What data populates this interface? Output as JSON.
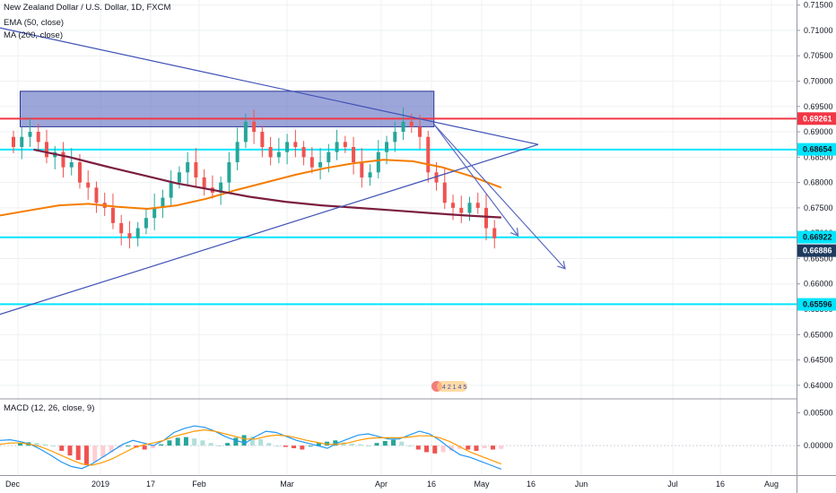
{
  "legend": {
    "symbol": "New Zealand Dollar / U.S. Dollar, 1D, FXCM",
    "ema": "EMA (50, close)",
    "ma": "MA (200, close)",
    "macd": "MACD (12, 26, close, 9)"
  },
  "badge_text": "4 2 1 4 5",
  "colors": {
    "bull": "#26a69a",
    "bear": "#ef5350",
    "ema": "#f57c00",
    "ma": "#7b1e3f",
    "trend": "#3f51b5",
    "cyan": "#00e5ff",
    "red_level": "#f23645",
    "zone_fill": "#5c6bc0",
    "macd_line": "#2196f3",
    "signal_line": "#ff9800"
  },
  "chart_data": [
    {
      "type": "candlestick",
      "title": "New Zealand Dollar / U.S. Dollar, 1D, FXCM",
      "y_axis_ticks": [
        "0.71500",
        "0.71000",
        "0.70500",
        "0.70000",
        "0.69500",
        "0.69000",
        "0.68500",
        "0.68000",
        "0.67500",
        "0.67000",
        "0.66500",
        "0.66000",
        "0.65500",
        "0.65000",
        "0.64500",
        "0.64000"
      ],
      "y_range": [
        0.6375,
        0.716
      ],
      "x_axis_ticks": [
        "Dec",
        "2019",
        "17",
        "Feb",
        "Mar",
        "Apr",
        "16",
        "May",
        "16",
        "Jun",
        "Jul",
        "16",
        "Aug"
      ],
      "price_labels": [
        {
          "value": "0.69261",
          "style": "red"
        },
        {
          "value": "0.68654",
          "style": "cyan"
        },
        {
          "value": "0.66922",
          "style": "cyan"
        },
        {
          "value": "0.66886",
          "style": "dark"
        },
        {
          "value": "0.65596",
          "style": "cyan"
        }
      ],
      "horizontal_levels": [
        {
          "price": 0.6926,
          "color": "red"
        },
        {
          "price": 0.6865,
          "color": "cyan"
        },
        {
          "price": 0.6692,
          "color": "cyan"
        },
        {
          "price": 0.656,
          "color": "cyan"
        }
      ],
      "zone": {
        "from_price": 0.691,
        "to_price": 0.698,
        "from": "Nov 26",
        "to": "Mar 30"
      },
      "ohlc_sample_closes": [
        0.687,
        0.689,
        0.69,
        0.688,
        0.685,
        0.686,
        0.683,
        0.684,
        0.68,
        0.679,
        0.676,
        0.675,
        0.672,
        0.67,
        0.669,
        0.671,
        0.673,
        0.675,
        0.677,
        0.68,
        0.682,
        0.684,
        0.681,
        0.679,
        0.678,
        0.68,
        0.684,
        0.688,
        0.692,
        0.69,
        0.687,
        0.685,
        0.686,
        0.688,
        0.687,
        0.685,
        0.683,
        0.684,
        0.686,
        0.688,
        0.687,
        0.684,
        0.681,
        0.682,
        0.686,
        0.688,
        0.69,
        0.692,
        0.691,
        0.689,
        0.682,
        0.68,
        0.676,
        0.675,
        0.674,
        0.676,
        0.675,
        0.671,
        0.669
      ],
      "ema_50": [
        0.6735,
        0.6745,
        0.6755,
        0.6758,
        0.6752,
        0.6748,
        0.6755,
        0.6768,
        0.6785,
        0.68,
        0.6815,
        0.6828,
        0.6838,
        0.6845,
        0.6842,
        0.683,
        0.6812,
        0.679
      ],
      "ma_200": [
        0.6865,
        0.685,
        0.6832,
        0.6815,
        0.6798,
        0.6785,
        0.6772,
        0.6762,
        0.6755,
        0.675,
        0.6745,
        0.674,
        0.6735,
        0.6731
      ],
      "trendlines": [
        {
          "from": "Nov 20 @ 0.7105",
          "to": "Apr 30 @ 0.6875"
        },
        {
          "from": "Nov 20 @ 0.6540",
          "to": "Apr 30 @ 0.6875"
        }
      ],
      "projections": [
        {
          "from": "Mar 30 @ 0.6915",
          "to": "Apr 24 @ 0.6695"
        },
        {
          "from": "Mar 30 @ 0.6915",
          "to": "May 8 @ 0.6630"
        }
      ]
    },
    {
      "type": "macd",
      "title": "MACD (12, 26, close, 9)",
      "y_axis_ticks": [
        "0.00500",
        "0.00000"
      ],
      "y_range": [
        -0.0045,
        0.007
      ],
      "histogram": [
        0.0004,
        0.0005,
        0.0004,
        0.0002,
        0.0,
        -0.0008,
        -0.0015,
        -0.0022,
        -0.003,
        -0.0025,
        -0.0018,
        -0.001,
        -0.0003,
        0.0,
        -0.0003,
        -0.0006,
        -0.0004,
        0.0002,
        0.0008,
        0.0012,
        0.0013,
        0.0011,
        0.0008,
        0.0004,
        0.0,
        0.0004,
        0.0012,
        0.0016,
        0.0014,
        0.001,
        0.0004,
        0.0,
        -0.0002,
        -0.0004,
        -0.0006,
        0.0,
        0.0004,
        0.0006,
        0.0008,
        0.0005,
        0.0003,
        0.0002,
        0.0,
        0.0004,
        0.0007,
        0.0009,
        0.0006,
        0.0,
        -0.0006,
        -0.001,
        -0.0012,
        -0.001,
        -0.0008,
        -0.0005,
        -0.0006,
        -0.0008,
        -0.0004,
        -0.0006,
        -0.0005
      ],
      "macd_line": [
        0.0008,
        0.0009,
        0.0006,
        0.0002,
        -0.0006,
        -0.0015,
        -0.0025,
        -0.0032,
        -0.0035,
        -0.0028,
        -0.0018,
        -0.0008,
        0.0002,
        0.0008,
        0.0004,
        0.0,
        0.0008,
        0.002,
        0.0026,
        0.003,
        0.0028,
        0.0022,
        0.0014,
        0.0008,
        0.0004,
        0.0014,
        0.0022,
        0.002,
        0.0014,
        0.0008,
        0.0004,
        0.0,
        -0.0004,
        0.0004,
        0.001,
        0.0016,
        0.0018,
        0.0014,
        0.001,
        0.001,
        0.0016,
        0.0022,
        0.0018,
        0.0008,
        -0.0004,
        -0.0014,
        -0.0018,
        -0.0024,
        -0.003,
        -0.0036
      ],
      "signal_line": [
        0.0002,
        0.0004,
        0.0004,
        0.0002,
        -0.0002,
        -0.0008,
        -0.0015,
        -0.0022,
        -0.0028,
        -0.003,
        -0.0026,
        -0.002,
        -0.0012,
        -0.0004,
        0.0001,
        0.0004,
        0.0008,
        0.0014,
        0.0018,
        0.0022,
        0.0024,
        0.0022,
        0.0018,
        0.0014,
        0.001,
        0.001,
        0.0014,
        0.0016,
        0.0015,
        0.0012,
        0.0008,
        0.0005,
        0.0002,
        0.0002,
        0.0004,
        0.0008,
        0.0011,
        0.0012,
        0.0012,
        0.0012,
        0.0013,
        0.0015,
        0.0015,
        0.0012,
        0.0006,
        -0.0002,
        -0.001,
        -0.0016,
        -0.0022,
        -0.0028
      ]
    }
  ]
}
